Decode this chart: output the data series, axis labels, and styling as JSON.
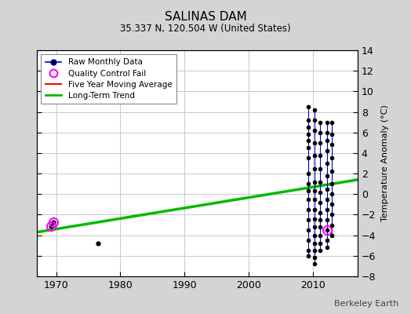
{
  "title": "SALINAS DAM",
  "subtitle": "35.337 N, 120.504 W (United States)",
  "ylabel_right": "Temperature Anomaly (°C)",
  "watermark": "Berkeley Earth",
  "xlim": [
    1967,
    2017
  ],
  "ylim": [
    -8,
    14
  ],
  "yticks": [
    -8,
    -6,
    -4,
    -2,
    0,
    2,
    4,
    6,
    8,
    10,
    12,
    14
  ],
  "xticks": [
    1970,
    1980,
    1990,
    2000,
    2010
  ],
  "background_color": "#d4d4d4",
  "plot_bg_color": "#ffffff",
  "grid_color": "#c8c8c8",
  "raw_data_color": "#0000cc",
  "raw_dot_color": "#000000",
  "qc_fail_color": "#ff00ff",
  "moving_avg_color": "#ff0000",
  "trend_color": "#00bb00",
  "trend_linewidth": 2.5,
  "raw_linewidth": 0.8,
  "scattered_points": [
    [
      1969.2,
      -3.1
    ],
    [
      1969.5,
      -2.7
    ],
    [
      1976.5,
      -4.8
    ]
  ],
  "qc_fail_points_early": [
    [
      1969.2,
      -3.1
    ],
    [
      1969.5,
      -2.7
    ]
  ],
  "dense_columns": [
    {
      "x": 2009.3,
      "values": [
        -6.0,
        -5.5,
        -4.5,
        -3.5,
        -2.5,
        -1.5,
        -0.5,
        0.3,
        1.0,
        2.0,
        3.5,
        4.5,
        5.2,
        5.8,
        6.5,
        7.2,
        8.5
      ]
    },
    {
      "x": 2010.3,
      "values": [
        -6.8,
        -6.2,
        -5.5,
        -4.8,
        -4.0,
        -3.2,
        -2.4,
        -1.5,
        -0.5,
        0.3,
        1.2,
        2.5,
        3.8,
        5.0,
        6.2,
        7.2,
        8.2
      ]
    },
    {
      "x": 2011.2,
      "values": [
        -5.5,
        -4.8,
        -4.0,
        -3.2,
        -2.5,
        -1.8,
        -0.8,
        0.2,
        1.2,
        2.5,
        3.8,
        5.0,
        6.0,
        7.0
      ]
    },
    {
      "x": 2012.2,
      "values": [
        -5.2,
        -4.5,
        -3.5,
        -2.5,
        -1.5,
        -0.5,
        0.5,
        1.8,
        3.0,
        4.2,
        5.2,
        6.0,
        7.0
      ]
    },
    {
      "x": 2013.0,
      "values": [
        -4.0,
        -3.0,
        -2.0,
        -1.0,
        0.0,
        1.0,
        2.2,
        3.5,
        4.8,
        5.8,
        7.0
      ]
    }
  ],
  "qc_fail_dense": [
    [
      2012.2,
      -3.5
    ]
  ],
  "trend_x": [
    1967,
    2017
  ],
  "trend_y": [
    -3.7,
    1.4
  ]
}
